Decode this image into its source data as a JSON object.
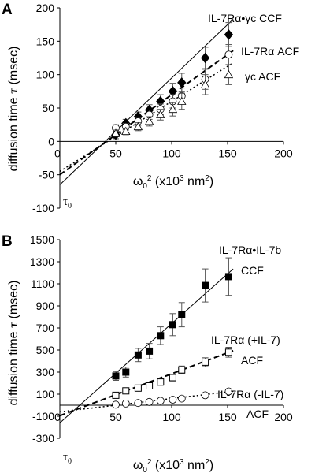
{
  "chart_data": [
    {
      "type": "scatter",
      "panel": "A",
      "xlabel": "ω0² (x10³ nm²)",
      "ylabel": "diffusion time τ (msec)",
      "xlim": [
        0,
        200
      ],
      "ylim": [
        -100,
        200
      ],
      "xticks": [
        50,
        100,
        150,
        200
      ],
      "yticks": [
        -100,
        -50,
        0,
        50,
        100,
        150,
        200
      ],
      "intercept_label": "τ0",
      "series": [
        {
          "name": "IL-7Rα•γc CCF",
          "marker": "diamond-filled",
          "fit": "solid",
          "x": [
            50,
            59,
            70,
            80,
            90,
            101,
            109,
            130,
            151
          ],
          "y": [
            10,
            27,
            37,
            47,
            60,
            75,
            88,
            125,
            160
          ],
          "err": [
            6,
            6,
            7,
            8,
            10,
            12,
            14,
            16,
            18
          ],
          "fit_line": {
            "slope": 1.6,
            "intercept": -65
          }
        },
        {
          "name": "IL-7Rα ACF",
          "marker": "circle-open",
          "fit": "dashed",
          "x": [
            50,
            59,
            70,
            80,
            90,
            101,
            109,
            130,
            151
          ],
          "y": [
            20,
            22,
            30,
            40,
            48,
            60,
            68,
            93,
            130
          ],
          "err": [
            5,
            5,
            6,
            7,
            8,
            10,
            12,
            15,
            15
          ],
          "fit_line": {
            "slope": 1.2,
            "intercept": -50
          }
        },
        {
          "name": "γc ACF",
          "marker": "triangle-open",
          "fit": "dotted",
          "x": [
            50,
            59,
            70,
            80,
            90,
            101,
            109,
            130,
            151
          ],
          "y": [
            12,
            15,
            22,
            30,
            40,
            48,
            60,
            85,
            100
          ],
          "err": [
            5,
            5,
            6,
            7,
            8,
            10,
            12,
            15,
            15
          ],
          "fit_line": {
            "slope": 1.05,
            "intercept": -45
          }
        }
      ]
    },
    {
      "type": "scatter",
      "panel": "B",
      "xlabel": "ω0² (x10³ nm²)",
      "ylabel": "diffusion time τ (msec)",
      "xlim": [
        0,
        200
      ],
      "ylim": [
        -300,
        1500
      ],
      "xticks": [
        50,
        100,
        150,
        200
      ],
      "yticks": [
        -300,
        -100,
        100,
        300,
        500,
        700,
        900,
        1100,
        1300,
        1500
      ],
      "intercept_label": "τ0",
      "series": [
        {
          "name": "IL-7Rα•IL-7b CCF",
          "marker": "square-filled",
          "fit": "solid",
          "x": [
            50,
            59,
            70,
            80,
            90,
            101,
            109,
            130,
            151
          ],
          "y": [
            265,
            300,
            455,
            490,
            630,
            730,
            820,
            1085,
            1165
          ],
          "err": [
            40,
            45,
            60,
            70,
            80,
            100,
            110,
            150,
            170
          ],
          "fit_line": {
            "slope": 9.0,
            "intercept": -160
          }
        },
        {
          "name": "IL-7Rα (+IL-7) ACF",
          "marker": "square-open",
          "fit": "dashed",
          "x": [
            50,
            59,
            70,
            80,
            90,
            101,
            109,
            130,
            151
          ],
          "y": [
            90,
            130,
            155,
            175,
            210,
            250,
            320,
            390,
            480
          ],
          "err": [
            15,
            20,
            20,
            25,
            30,
            30,
            35,
            40,
            45
          ],
          "fit_line": {
            "slope": 3.8,
            "intercept": -95
          }
        },
        {
          "name": "IL-7Rα (-IL-7) ACF",
          "marker": "circle-open",
          "fit": "dotted",
          "x": [
            50,
            59,
            70,
            80,
            90,
            101,
            109,
            130,
            151
          ],
          "y": [
            5,
            15,
            20,
            30,
            40,
            50,
            60,
            90,
            125
          ],
          "err": [
            10,
            10,
            10,
            10,
            10,
            12,
            12,
            15,
            15
          ],
          "fit_line": {
            "slope": 1.2,
            "intercept": -60
          }
        }
      ]
    }
  ],
  "panels": {
    "A": {
      "letter": "A",
      "label_ccf": "IL-7Rα•γc CCF",
      "label_acf1": "IL-7Rα ACF",
      "label_acf2": "γc ACF"
    },
    "B": {
      "letter": "B",
      "label_ccf_1": "IL-7Rα•IL-7b",
      "label_ccf_2": "CCF",
      "label_acf1_1": "IL-7Rα (+IL-7)",
      "label_acf1_2": "ACF",
      "label_acf2_1": "IL-7Rα (-IL-7)",
      "label_acf2_2": "ACF"
    }
  }
}
